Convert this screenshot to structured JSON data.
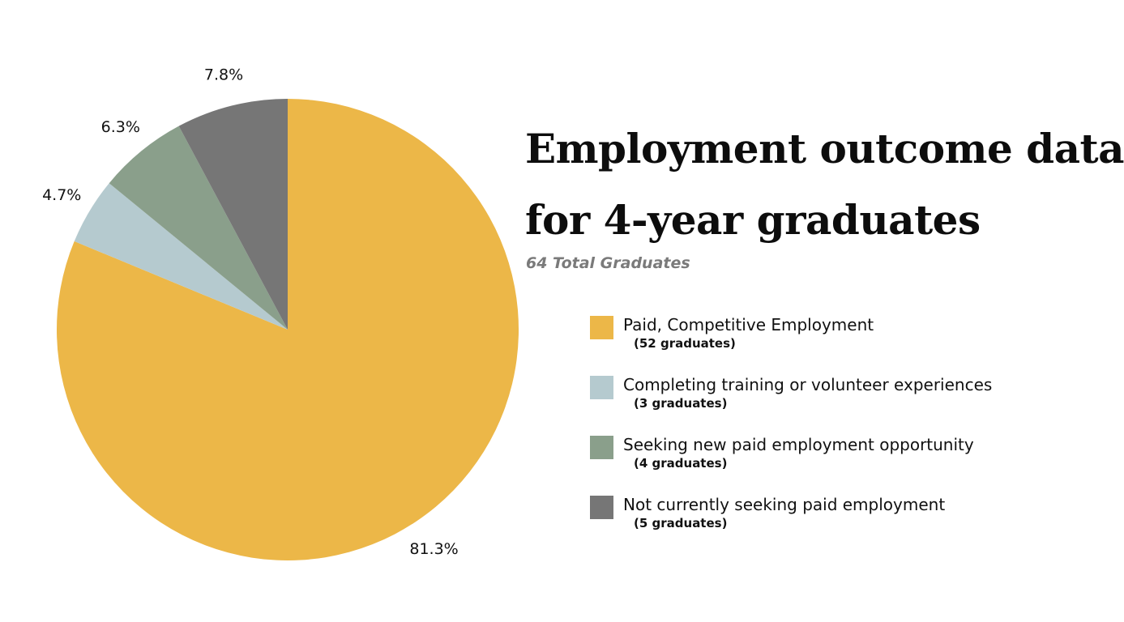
{
  "chart_data": {
    "type": "pie",
    "title": "Employment outcome data for 4-year graduates",
    "title_lines": [
      "Employment outcome data",
      "for 4-year graduates"
    ],
    "subtitle": "64 Total Graduates",
    "legend_placement": "right",
    "slices": [
      {
        "name": "Paid, Competitive Employment",
        "count_label": "(52 graduates)",
        "value": 52,
        "percent_label": "81.3%",
        "color": "#ECB748"
      },
      {
        "name": "Completing training or volunteer experiences",
        "count_label": "(3 graduates)",
        "value": 3,
        "percent_label": "4.7%",
        "color": "#B5CACF"
      },
      {
        "name": "Seeking new paid employment opportunity",
        "count_label": "(4 graduates)",
        "value": 4,
        "percent_label": "6.3%",
        "color": "#8A9F8B"
      },
      {
        "name": "Not currently seeking paid employment",
        "count_label": "(5 graduates)",
        "value": 5,
        "percent_label": "7.8%",
        "color": "#767676"
      }
    ]
  }
}
